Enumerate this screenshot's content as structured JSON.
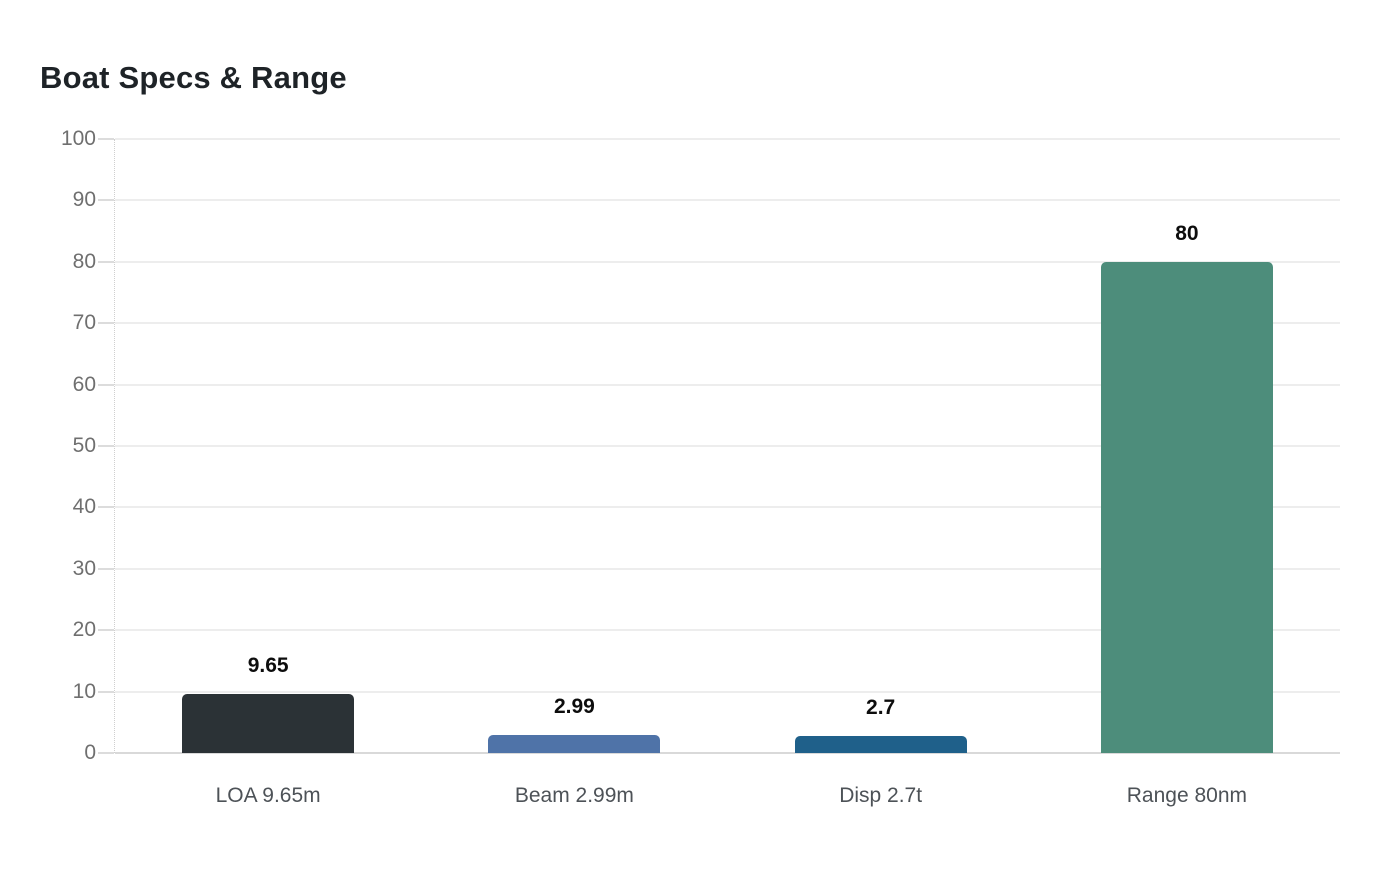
{
  "title": "Boat Specs & Range",
  "chart_data": {
    "type": "bar",
    "title": "Boat Specs & Range",
    "categories": [
      "LOA 9.65m",
      "Beam 2.99m",
      "Disp 2.7t",
      "Range 80nm"
    ],
    "values": [
      9.65,
      2.99,
      2.7,
      80
    ],
    "value_labels": [
      "9.65",
      "2.99",
      "2.7",
      "80"
    ],
    "bar_colors": [
      "#2b3236",
      "#4f73a8",
      "#1f608a",
      "#4d8d7b"
    ],
    "xlabel": "",
    "ylabel": "",
    "ylim": [
      0,
      100
    ],
    "yticks": [
      0,
      10,
      20,
      30,
      40,
      50,
      60,
      70,
      80,
      90,
      100
    ],
    "grid": true,
    "legend": false,
    "colors": {
      "background": "#ffffff",
      "gridline": "#ededed",
      "baseline": "#d9d9d9",
      "tick_label": "#6f6f6f",
      "category_label": "#4d5257",
      "value_label": "#0d0d0d",
      "title": "#1e2327"
    }
  }
}
